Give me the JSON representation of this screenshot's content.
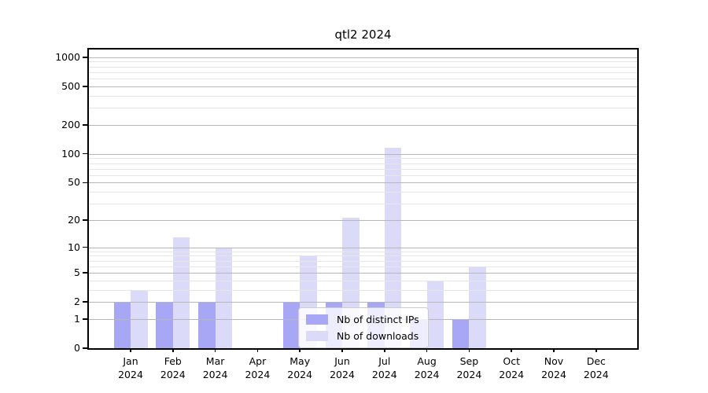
{
  "chart_data": {
    "type": "bar",
    "title": "qtl2 2024",
    "categories": [
      "Jan",
      "Feb",
      "Mar",
      "Apr",
      "May",
      "Jun",
      "Jul",
      "Aug",
      "Sep",
      "Oct",
      "Nov",
      "Dec"
    ],
    "year_label": "2024",
    "series": [
      {
        "name": "Nb of distinct IPs",
        "color": "#a8a7f6",
        "values": [
          2,
          2,
          2,
          0,
          2,
          2,
          2,
          1,
          1,
          0,
          0,
          0
        ]
      },
      {
        "name": "Nb of downloads",
        "color": "#dbdaf8",
        "values": [
          3,
          13,
          10,
          0,
          8,
          21,
          115,
          4,
          6,
          0,
          0,
          0
        ]
      }
    ],
    "xlabel": "",
    "ylabel": "",
    "yscale": "log1p",
    "ylim": [
      0,
      1200
    ],
    "yticks": [
      0,
      1,
      2,
      5,
      10,
      20,
      50,
      100,
      200,
      500,
      1000
    ],
    "yticks_minor": [
      3,
      4,
      6,
      7,
      8,
      9,
      30,
      40,
      60,
      70,
      80,
      90,
      300,
      400,
      600,
      700,
      800,
      900
    ],
    "grid": true,
    "gridline_major_color": "#b6b6b6",
    "gridline_minor_color": "#e6e6e6",
    "legend_position": "lower center",
    "legend": [
      "Nb of distinct IPs",
      "Nb of downloads"
    ]
  }
}
